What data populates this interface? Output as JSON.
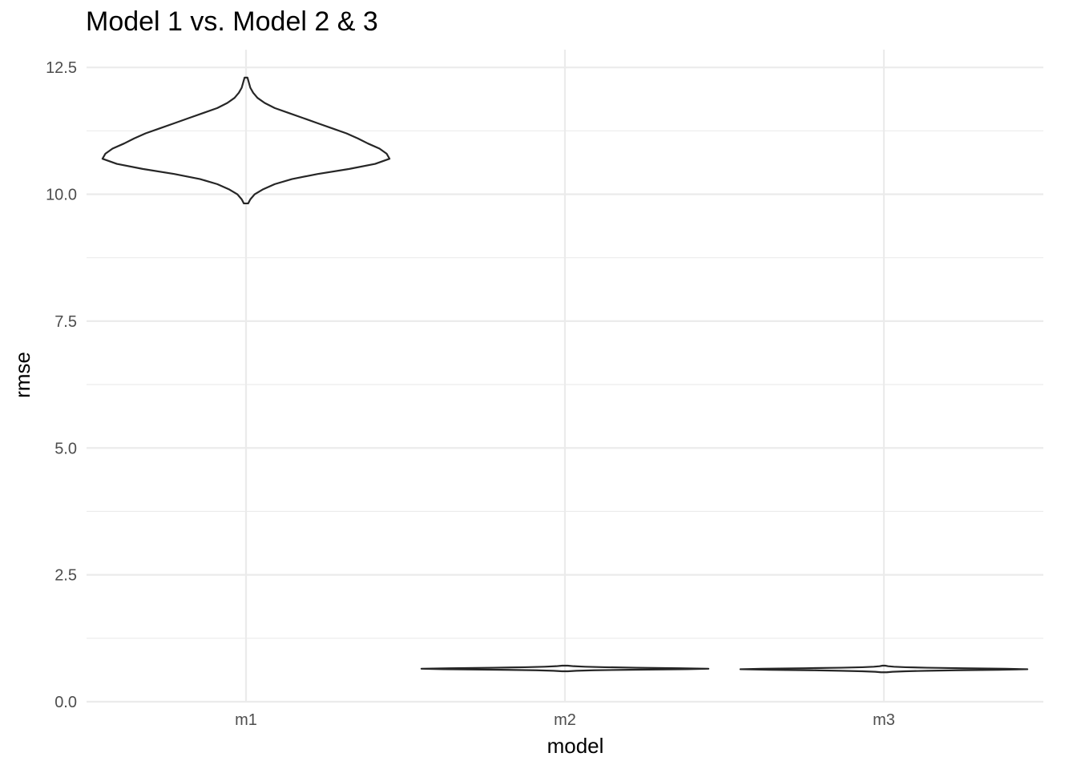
{
  "chart_data": {
    "type": "violin",
    "title": "Model 1 vs. Model 2 & 3",
    "xlabel": "model",
    "ylabel": "rmse",
    "categories": [
      "m1",
      "m2",
      "m3"
    ],
    "ylim": [
      0,
      12.85
    ],
    "yticks": [
      0.0,
      2.5,
      5.0,
      7.5,
      10.0,
      12.5
    ],
    "ytick_labels": [
      "0.0",
      "2.5",
      "5.0",
      "7.5",
      "10.0",
      "12.5"
    ],
    "grid": true,
    "legend": "none",
    "outline_color": "#262626",
    "grid_color": "#ebebeb",
    "violins": [
      {
        "category": "m1",
        "min": 9.82,
        "max": 12.3,
        "profile": [
          [
            9.82,
            0.015
          ],
          [
            9.9,
            0.03
          ],
          [
            10.0,
            0.06
          ],
          [
            10.1,
            0.12
          ],
          [
            10.2,
            0.2
          ],
          [
            10.3,
            0.32
          ],
          [
            10.4,
            0.5
          ],
          [
            10.5,
            0.72
          ],
          [
            10.6,
            0.9
          ],
          [
            10.7,
            1.0
          ],
          [
            10.8,
            0.98
          ],
          [
            10.9,
            0.93
          ],
          [
            11.0,
            0.85
          ],
          [
            11.1,
            0.78
          ],
          [
            11.2,
            0.7
          ],
          [
            11.3,
            0.6
          ],
          [
            11.4,
            0.5
          ],
          [
            11.5,
            0.4
          ],
          [
            11.6,
            0.3
          ],
          [
            11.7,
            0.2
          ],
          [
            11.8,
            0.13
          ],
          [
            11.9,
            0.08
          ],
          [
            12.0,
            0.05
          ],
          [
            12.1,
            0.03
          ],
          [
            12.2,
            0.02
          ],
          [
            12.3,
            0.01
          ]
        ]
      },
      {
        "category": "m2",
        "min": 0.6,
        "max": 0.71,
        "profile": [
          [
            0.6,
            0.02
          ],
          [
            0.61,
            0.08
          ],
          [
            0.62,
            0.2
          ],
          [
            0.63,
            0.45
          ],
          [
            0.64,
            0.85
          ],
          [
            0.65,
            1.0
          ],
          [
            0.66,
            0.8
          ],
          [
            0.67,
            0.5
          ],
          [
            0.68,
            0.28
          ],
          [
            0.69,
            0.14
          ],
          [
            0.7,
            0.06
          ],
          [
            0.71,
            0.02
          ]
        ]
      },
      {
        "category": "m3",
        "min": 0.58,
        "max": 0.71,
        "profile": [
          [
            0.58,
            0.02
          ],
          [
            0.59,
            0.06
          ],
          [
            0.6,
            0.15
          ],
          [
            0.61,
            0.3
          ],
          [
            0.62,
            0.5
          ],
          [
            0.63,
            0.8
          ],
          [
            0.64,
            1.0
          ],
          [
            0.65,
            0.85
          ],
          [
            0.66,
            0.55
          ],
          [
            0.67,
            0.3
          ],
          [
            0.68,
            0.15
          ],
          [
            0.69,
            0.07
          ],
          [
            0.7,
            0.03
          ],
          [
            0.71,
            0.01
          ]
        ]
      }
    ]
  }
}
